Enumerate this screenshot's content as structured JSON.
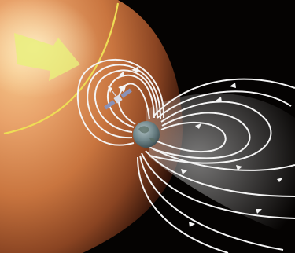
{
  "scene": {
    "background_color": "#050302",
    "sun_colors": [
      "#f7c98c",
      "#e9a36b",
      "#c9753f",
      "#8a4422",
      "#2a0f07"
    ],
    "sun_glow_color": "#fff0c6",
    "solar_wind_color": "#e8f07a",
    "bow_shock_color": "#eedd55",
    "field_line_color": "#f4f4f4",
    "magnetosphere_tint": "#d8d8d8",
    "earth_colors": [
      "#aebfc2",
      "#6f8589",
      "#3a4a4e"
    ],
    "satellite_color": "#d8dce8",
    "satellite_panel_color": "#8a92b8"
  }
}
